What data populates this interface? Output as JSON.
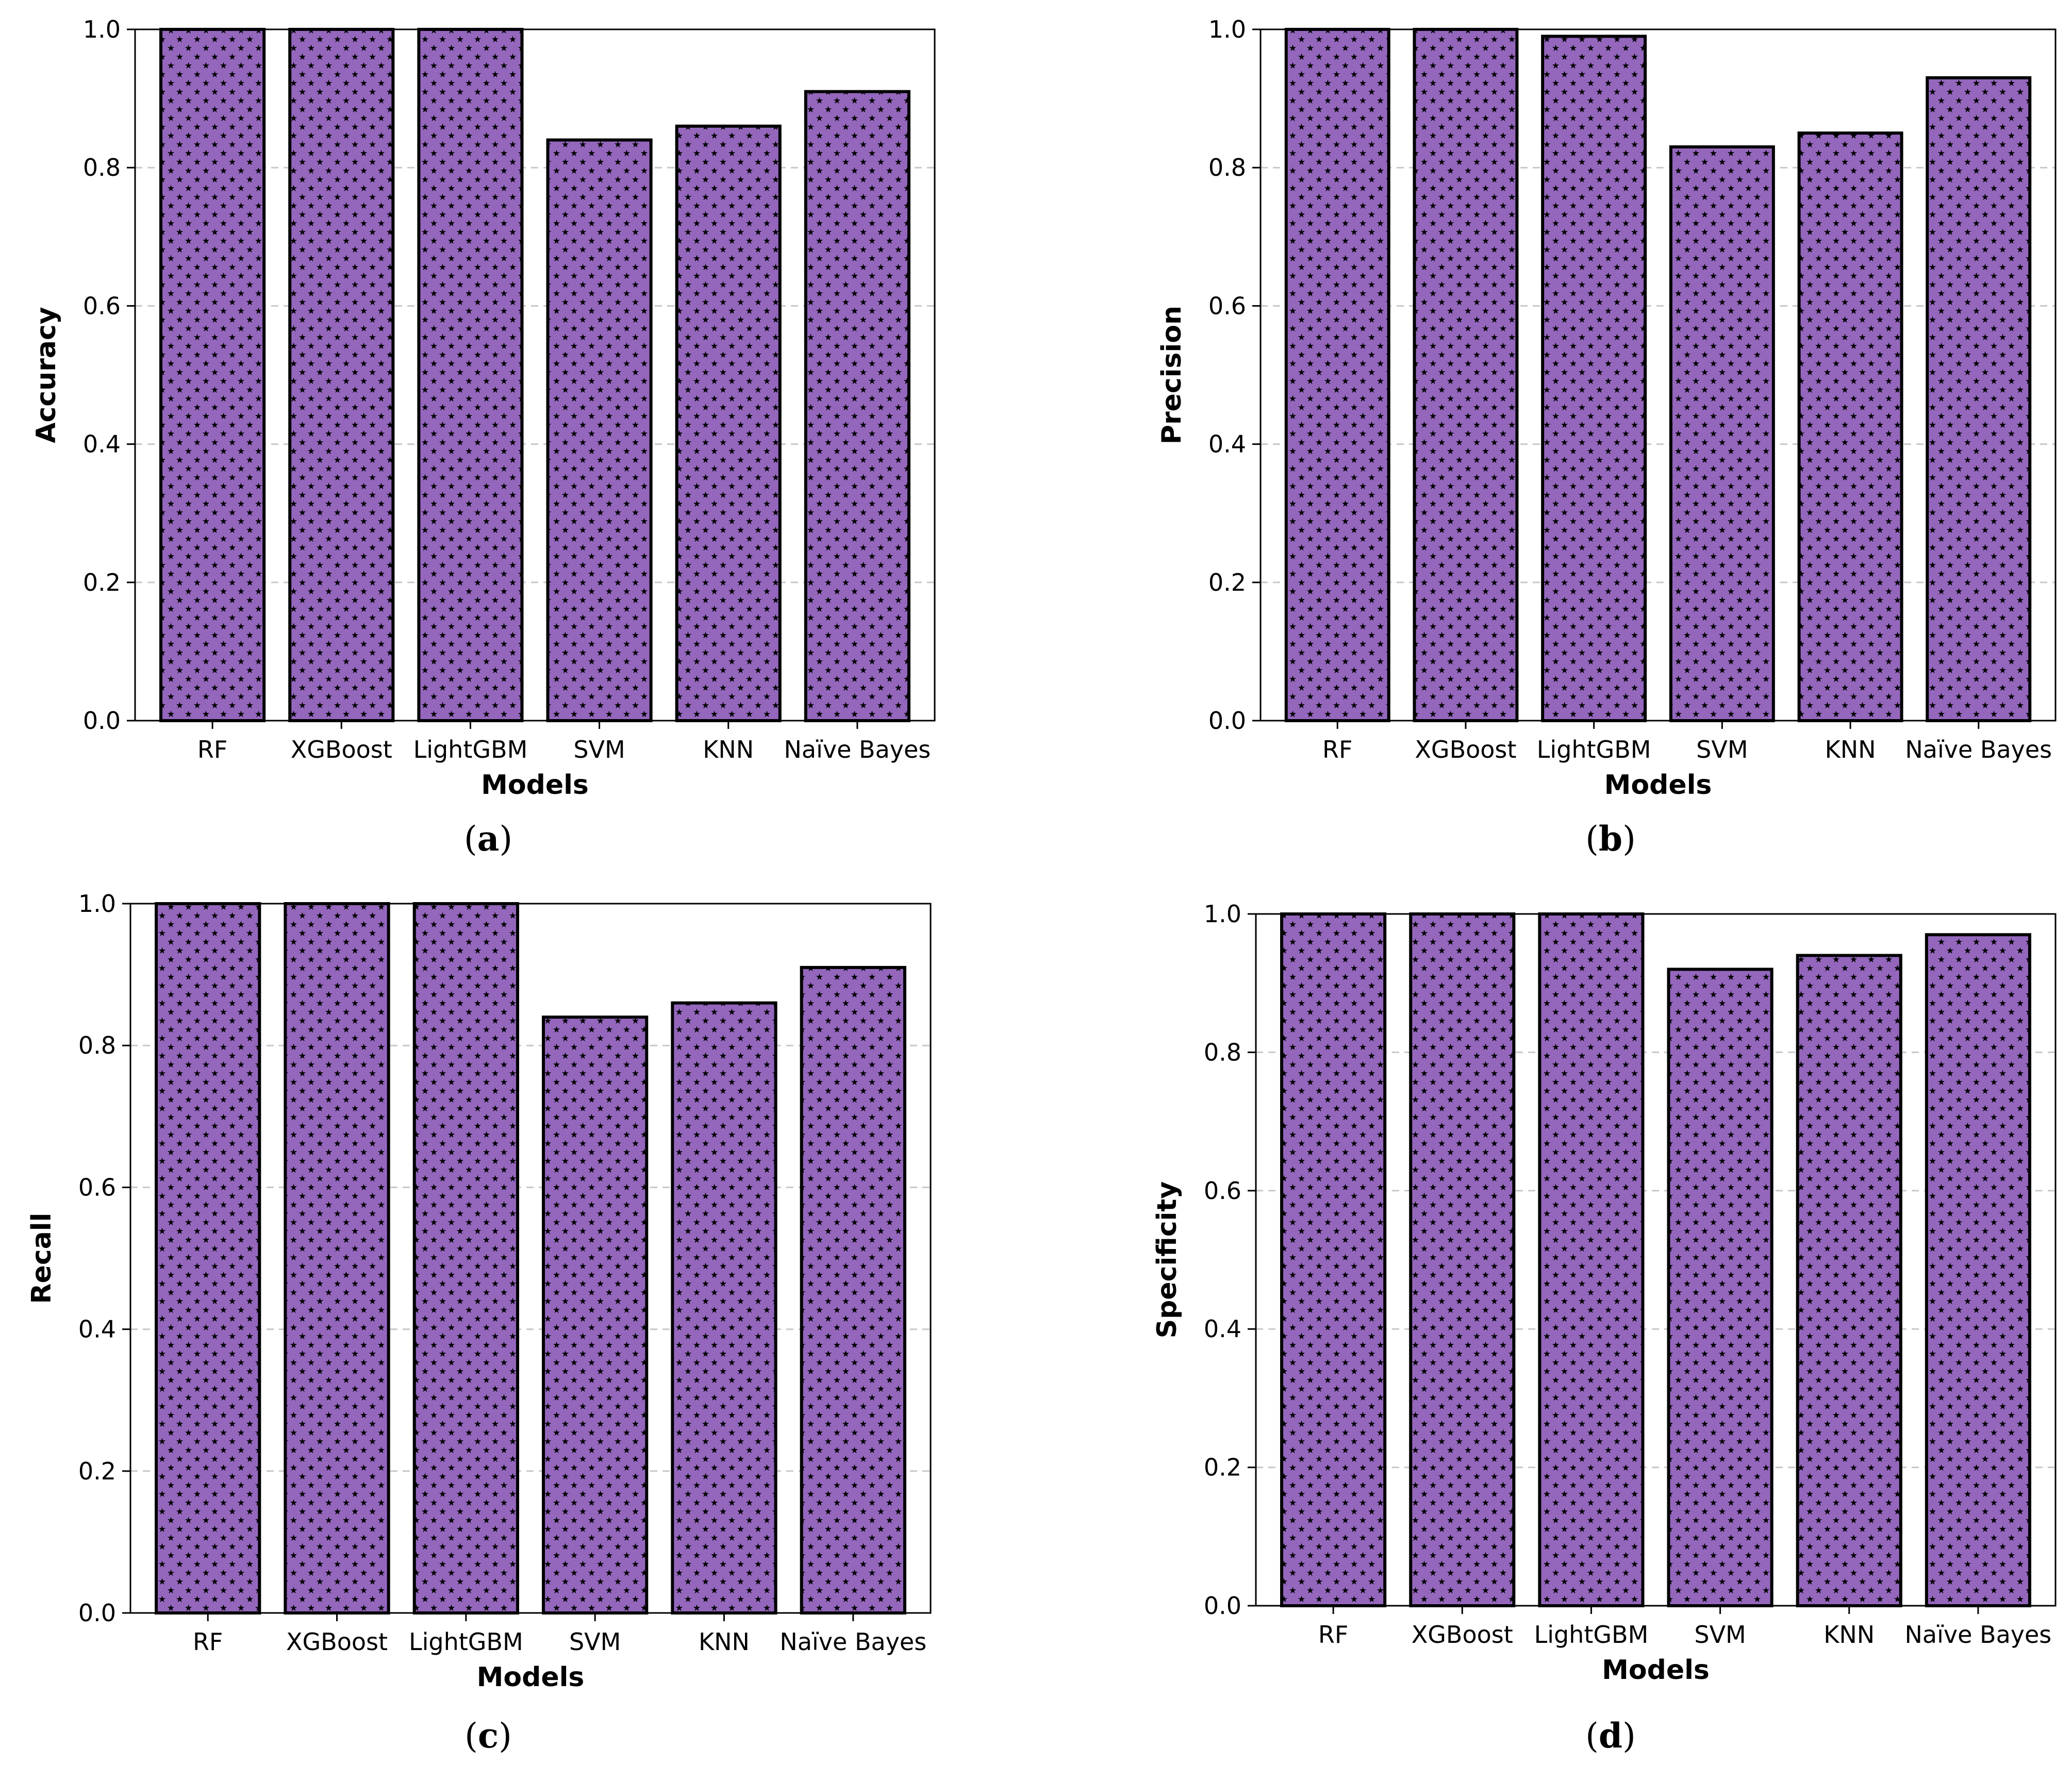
{
  "colors": {
    "bar_fill": "#9467bd",
    "bar_hatch": "#000000",
    "bar_edge": "#000000",
    "grid": "#c8c8c8",
    "axes": "#000000"
  },
  "chart_data": [
    {
      "type": "bar",
      "caption_letter": "a",
      "categories": [
        "RF",
        "XGBoost",
        "LightGBM",
        "SVM",
        "KNN",
        "Naïve Bayes"
      ],
      "values": [
        1.0,
        1.0,
        1.0,
        0.84,
        0.86,
        0.91
      ],
      "xlabel": "Models",
      "ylabel": "Accuracy",
      "ylim": [
        0,
        1.0
      ],
      "yticks": [
        "0.0",
        "0.2",
        "0.4",
        "0.6",
        "0.8",
        "1.0"
      ],
      "grid": "y dashed",
      "hatch": "stars"
    },
    {
      "type": "bar",
      "caption_letter": "b",
      "categories": [
        "RF",
        "XGBoost",
        "LightGBM",
        "SVM",
        "KNN",
        "Naïve Bayes"
      ],
      "values": [
        1.0,
        1.0,
        0.99,
        0.83,
        0.85,
        0.93
      ],
      "xlabel": "Models",
      "ylabel": "Precision",
      "ylim": [
        0,
        1.0
      ],
      "yticks": [
        "0.0",
        "0.2",
        "0.4",
        "0.6",
        "0.8",
        "1.0"
      ],
      "grid": "y dashed",
      "hatch": "stars"
    },
    {
      "type": "bar",
      "caption_letter": "c",
      "categories": [
        "RF",
        "XGBoost",
        "LightGBM",
        "SVM",
        "KNN",
        "Naïve Bayes"
      ],
      "values": [
        1.0,
        1.0,
        1.0,
        0.84,
        0.86,
        0.91
      ],
      "xlabel": "Models",
      "ylabel": "Recall",
      "ylim": [
        0,
        1.0
      ],
      "yticks": [
        "0.0",
        "0.2",
        "0.4",
        "0.6",
        "0.8",
        "1.0"
      ],
      "grid": "y dashed",
      "hatch": "stars"
    },
    {
      "type": "bar",
      "caption_letter": "d",
      "categories": [
        "RF",
        "XGBoost",
        "LightGBM",
        "SVM",
        "KNN",
        "Naïve Bayes"
      ],
      "values": [
        1.0,
        1.0,
        1.0,
        0.92,
        0.94,
        0.97
      ],
      "xlabel": "Models",
      "ylabel": "Specificity",
      "ylim": [
        0,
        1.0
      ],
      "yticks": [
        "0.0",
        "0.2",
        "0.4",
        "0.6",
        "0.8",
        "1.0"
      ],
      "grid": "y dashed",
      "hatch": "stars"
    }
  ]
}
